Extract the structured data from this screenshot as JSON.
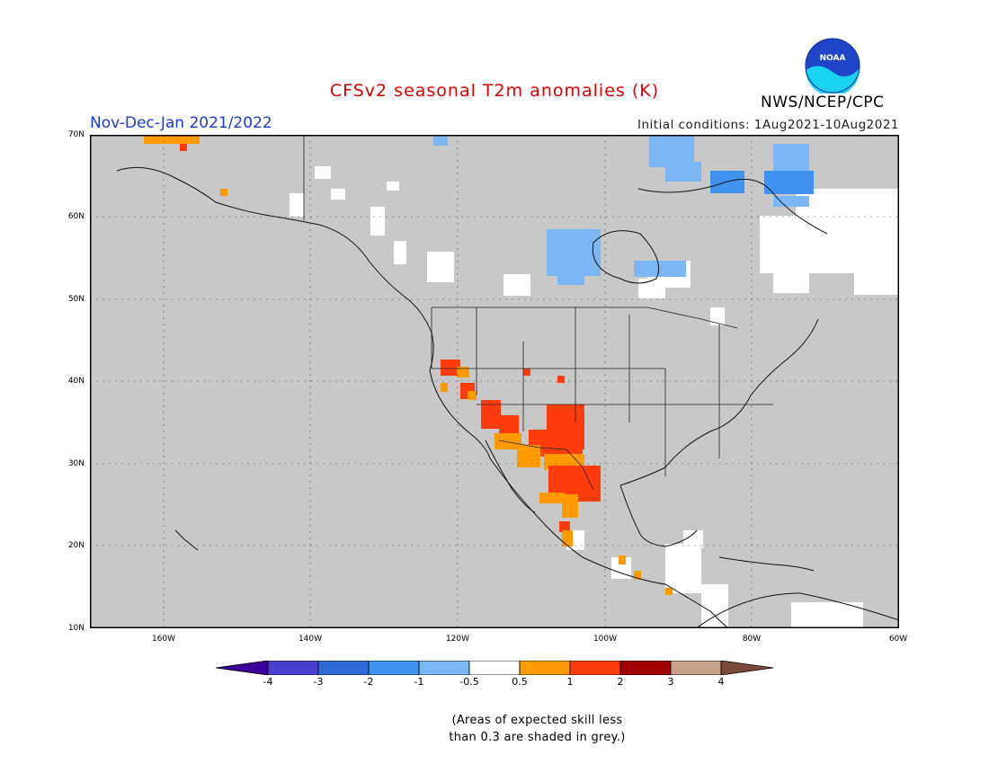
{
  "title": "CFSv2 seasonal T2m anomalies (K)",
  "period": "Nov-Dec-Jan 2021/2022",
  "initial_conditions": "Initial conditions: 1Aug2021-10Aug2021",
  "agency": "NWS/NCEP/CPC",
  "logo_text": "NOAA",
  "lat_labels": [
    "70N",
    "60N",
    "50N",
    "40N",
    "30N",
    "20N",
    "10N"
  ],
  "lon_labels": [
    "160W",
    "140W",
    "120W",
    "100W",
    "80W",
    "60W"
  ],
  "colorbar": {
    "labels": [
      "-4",
      "-3",
      "-2",
      "-1",
      "-0.5",
      "0.5",
      "1",
      "2",
      "3",
      "4"
    ],
    "colors": [
      "#3a0099",
      "#4a3fd0",
      "#2f6bd8",
      "#3f92ee",
      "#7bb7f5",
      "#ffffff",
      "#ff9a00",
      "#ff3c0b",
      "#a00000",
      "#c9a08c",
      "#7a4a3a"
    ]
  },
  "note_line1": "(Areas of expected skill less",
  "note_line2": "than 0.3 are shaded in grey.)",
  "map_colors": {
    "no_skill_grey": "#c8c8c8",
    "near_normal_white": "#ffffff",
    "warm_1": "#ff9a00",
    "warm_2": "#ff3c0b",
    "cold_1": "#7bb7f5",
    "cold_2": "#3f92ee"
  }
}
